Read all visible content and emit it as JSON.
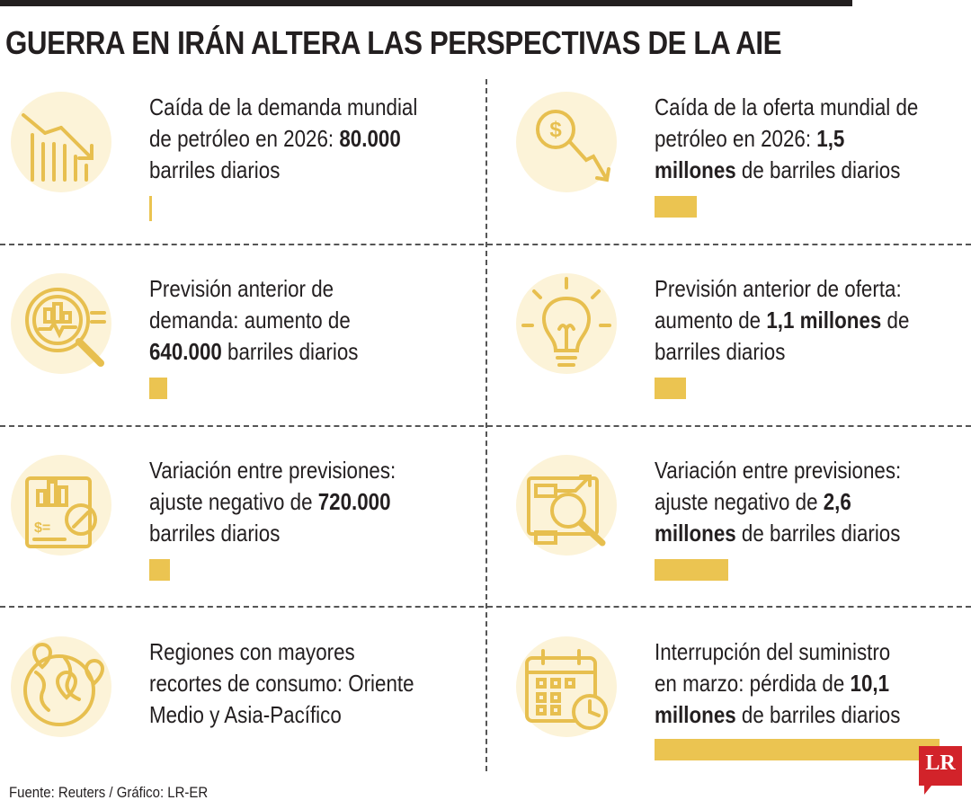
{
  "title": "GUERRA EN IRÁN ALTERA LAS PERSPECTIVAS DE LA AIE",
  "source": "Fuente: Reuters / Gráfico: LR-ER",
  "logo": "LR",
  "accent_color": "#ebc451",
  "icon_bg_color": "#fcf3d8",
  "logo_color": "#d2232a",
  "items": [
    {
      "icon": "declining-bar-chart-icon",
      "line1": "Caída de la demanda mundial",
      "line2a": "de petróleo en 2026: ",
      "line2b": "80.000",
      "line3a": "",
      "line3b": "barriles diarios",
      "bar_value": 80000
    },
    {
      "icon": "dollar-arrow-down-icon",
      "line1": "Caída de la oferta mundial de",
      "line2a": "petróleo en 2026: ",
      "line2b": "1,5",
      "line3a": "millones",
      "line3b": " de barriles diarios",
      "bar_value": 1500000
    },
    {
      "icon": "magnifier-chart-icon",
      "line1": "Previsión anterior de",
      "line2a": "demanda: aumento de",
      "line2b": "",
      "line3a": "640.000",
      "line3b": " barriles diarios",
      "bar_value": 640000
    },
    {
      "icon": "light-bulb-icon",
      "line1": "Previsión anterior de oferta:",
      "line2a": "aumento de ",
      "line2b": "1,1 millones",
      "line2c": " de",
      "line3a": "",
      "line3b": "barriles diarios",
      "bar_value": 1100000
    },
    {
      "icon": "report-percent-icon",
      "line1": "Variación entre previsiones:",
      "line2a": "ajuste negativo de ",
      "line2b": "720.000",
      "line3a": "",
      "line3b": "barriles diarios",
      "bar_value": 720000
    },
    {
      "icon": "analytics-magnifier-icon",
      "line1": "Variación entre previsiones:",
      "line2a": "ajuste negativo de ",
      "line2b": "2,6",
      "line3a": "millones",
      "line3b": " de barriles diarios",
      "bar_value": 2600000
    },
    {
      "icon": "globe-location-pins-icon",
      "line1": "Regiones con mayores",
      "line2a": "recortes de consumo: Oriente",
      "line2b": "",
      "line3a": "",
      "line3b": "Medio y Asia-Pacífico"
    },
    {
      "icon": "calendar-clock-icon",
      "line1": "Interrupción del suministro",
      "line2a": "en marzo: pérdida de ",
      "line2b": "10,1",
      "line3a": "millones",
      "line3b": " de barriles diarios",
      "bar_value": 10100000
    }
  ]
}
